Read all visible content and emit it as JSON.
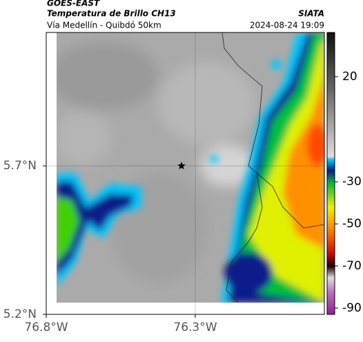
{
  "header": {
    "source": "GOES-EAST",
    "product": "Temperatura de Brillo CH13",
    "route": "Vía Medellín - Quibdó 50km",
    "agency": "SIATA",
    "datetime": "2024-08-24 19:09"
  },
  "map": {
    "xlim": [
      -76.8,
      -75.867
    ],
    "ylim": [
      5.2,
      6.149
    ],
    "xticks": [
      {
        "value": -76.8,
        "label": "76.8°W"
      },
      {
        "value": -76.3,
        "label": "76.3°W"
      }
    ],
    "yticks": [
      {
        "value": 5.2,
        "label": "5.2°N"
      },
      {
        "value": 5.7,
        "label": "5.7°N"
      }
    ],
    "grid": true
  },
  "colorbar": {
    "lim": [
      -93,
      41
    ],
    "ticks": [
      20,
      -30,
      -50,
      -70,
      -90
    ]
  }
}
